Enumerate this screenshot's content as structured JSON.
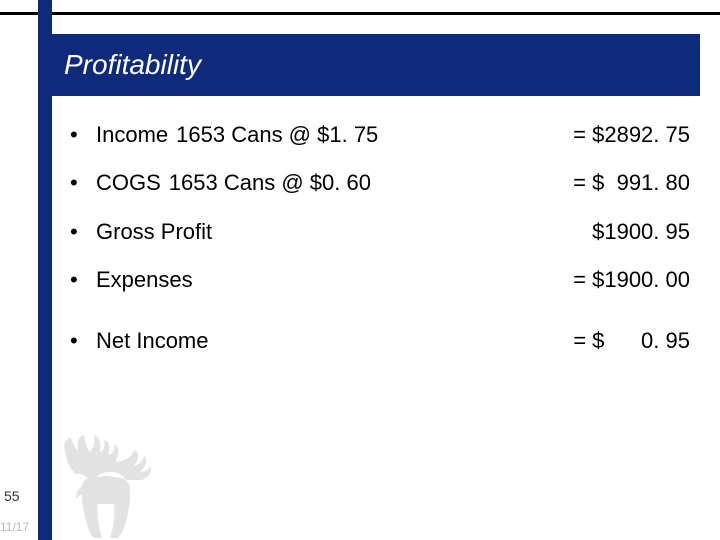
{
  "title": "Profitability",
  "title_bar_color": "#0f2a7a",
  "title_text_color": "#ffffff",
  "title_fontsize": 28,
  "body_fontsize": 22,
  "text_color": "#000000",
  "background_color": "#ffffff",
  "top_rule_color": "#000000",
  "vertical_rule_color": "#0f2a7a",
  "rows": [
    {
      "label": "Income",
      "mid": "1653 Cans @ $1. 75",
      "val": "= $2892. 75"
    },
    {
      "label": "COGS",
      "mid": "1653 Cans @ $0. 60",
      "val": "= $  991. 80"
    },
    {
      "label": "Gross Profit",
      "mid": "",
      "val": "   $1900. 95"
    },
    {
      "label": "Expenses",
      "mid": "",
      "val": "= $1900. 00"
    },
    {
      "label": "Net Income",
      "mid": "",
      "val": "= $      0. 95",
      "gap_before": true
    }
  ],
  "page_number": "55",
  "date": "11/17",
  "moose_icon_color": "#9a9a9a"
}
